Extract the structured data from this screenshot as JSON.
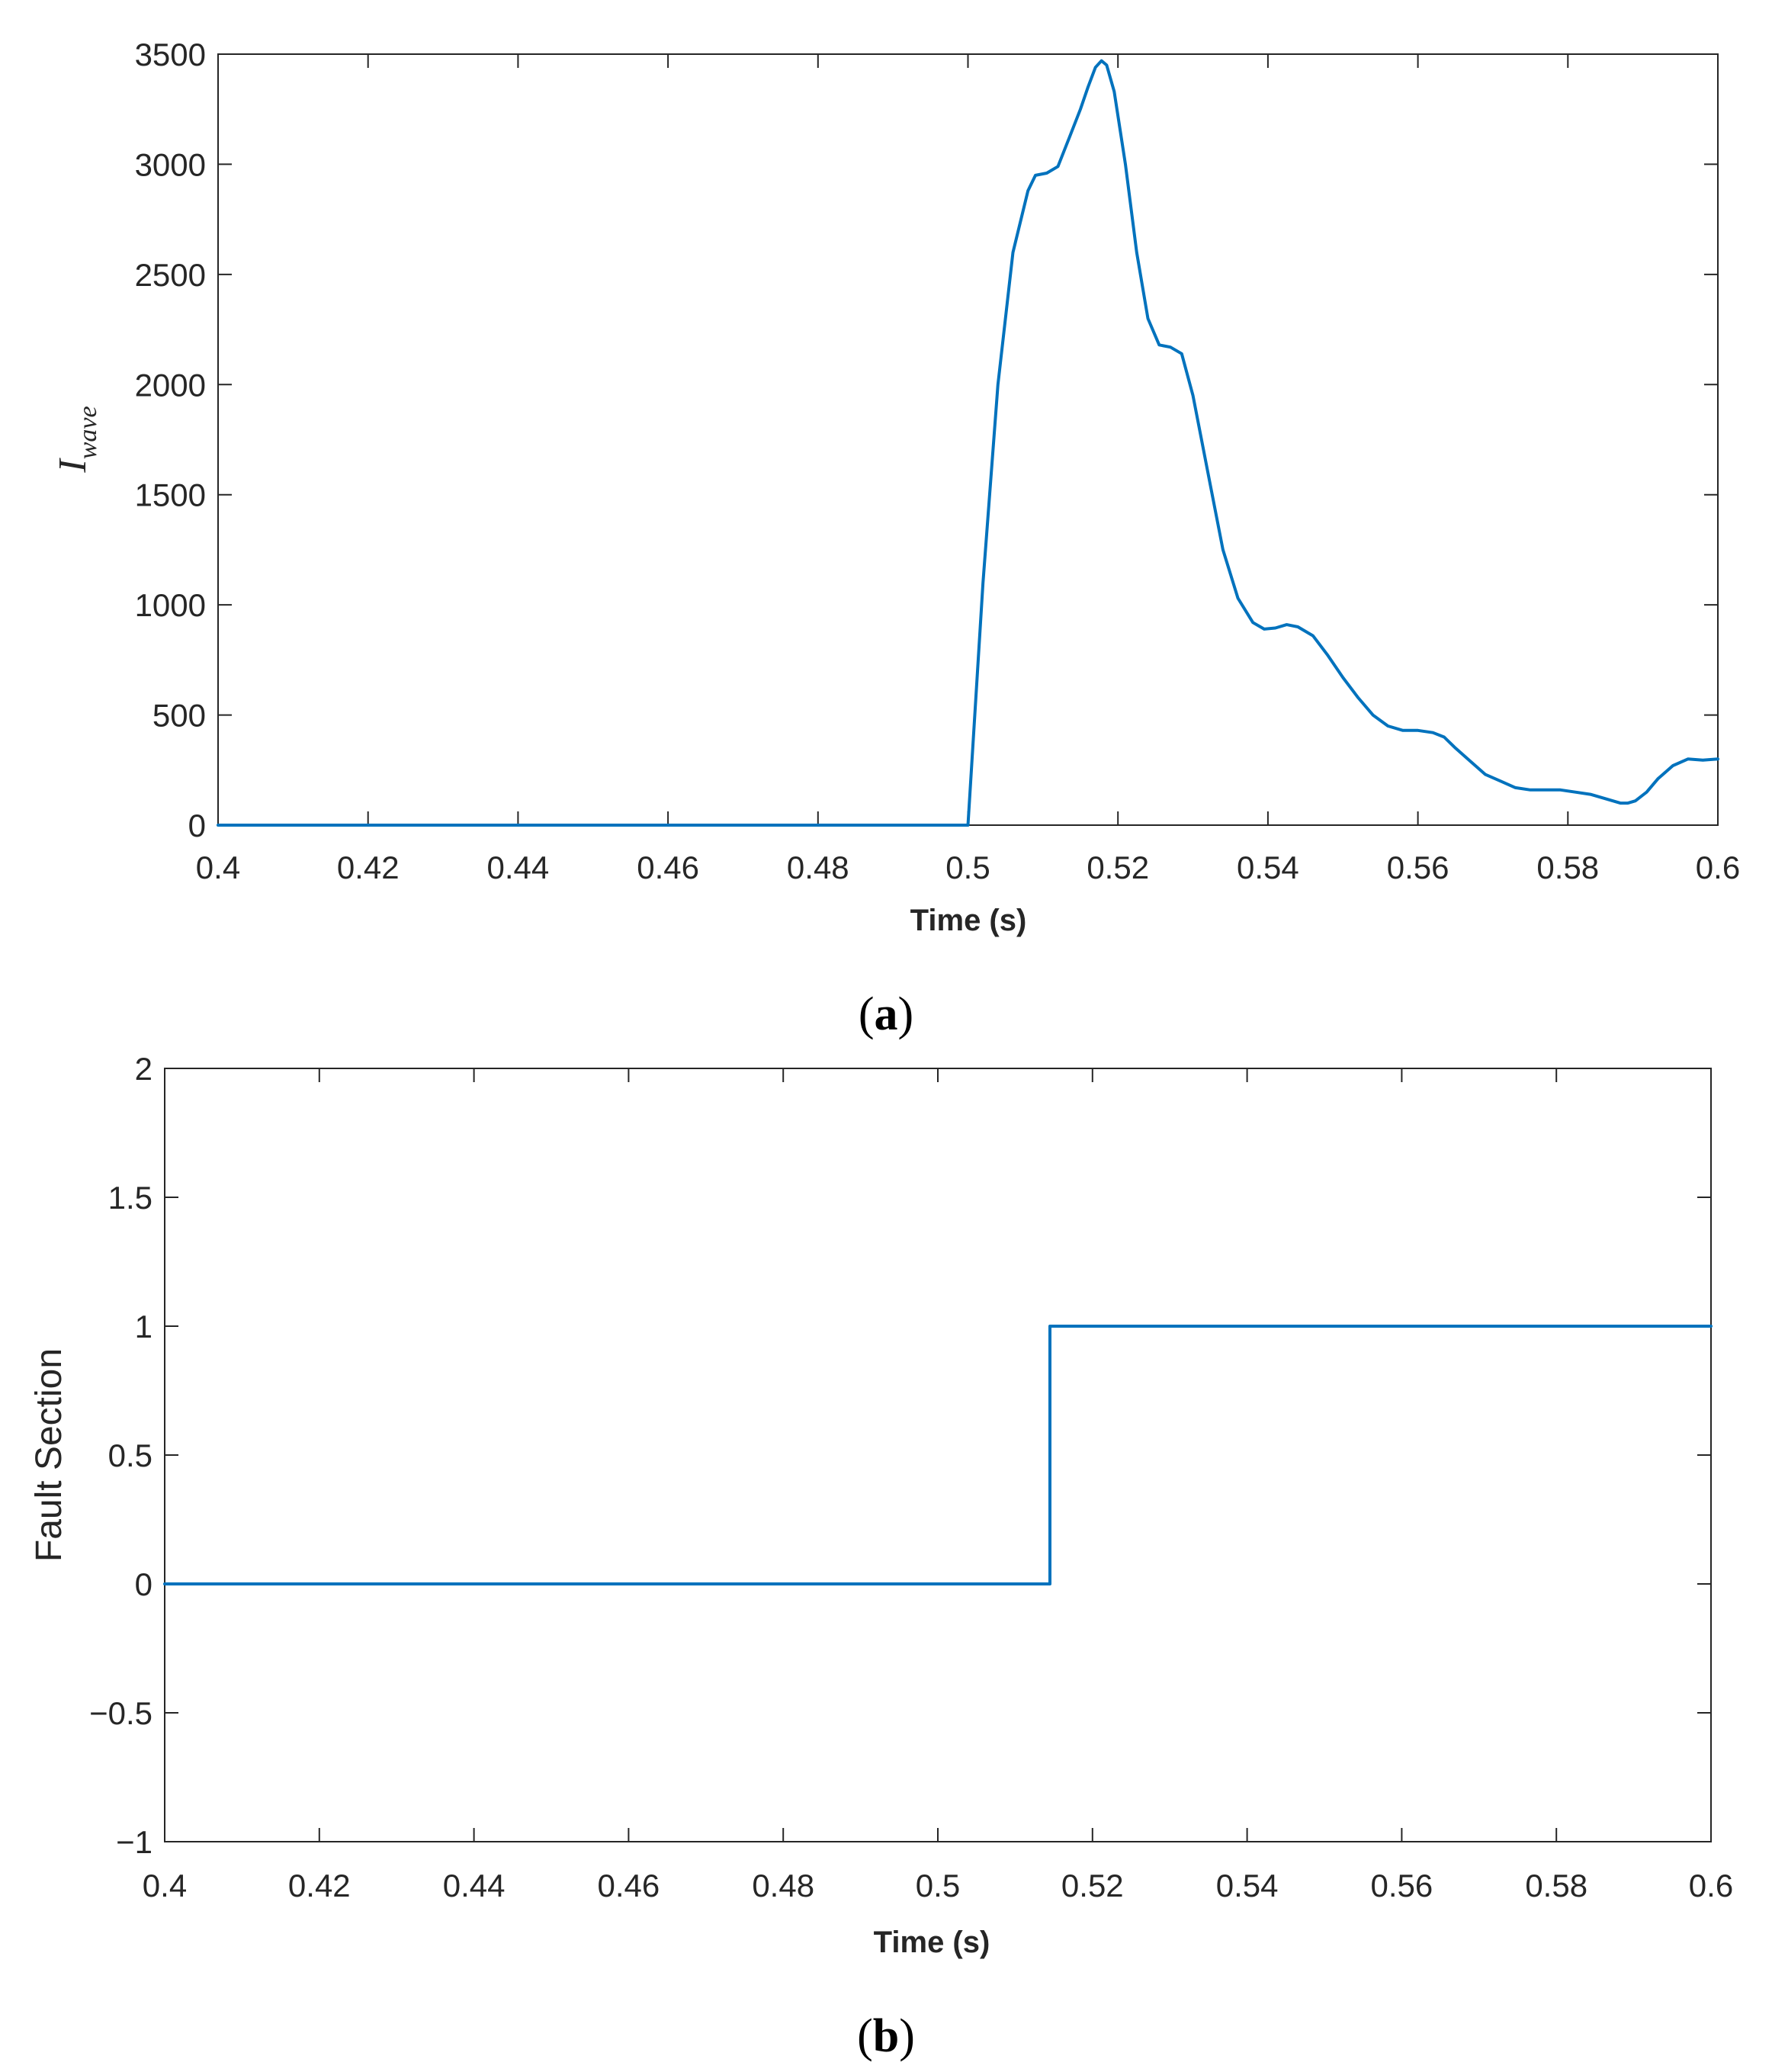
{
  "colors": {
    "series": "#0072BD",
    "axis": "#262626"
  },
  "chart_data": [
    {
      "panel": "a",
      "type": "line",
      "xlabel": "Time (s)",
      "ylabel_main": "I",
      "ylabel_sub": "wave",
      "xlim": [
        0.4,
        0.6
      ],
      "ylim": [
        0,
        3500
      ],
      "xticks": [
        "0.4",
        "0.42",
        "0.44",
        "0.46",
        "0.48",
        "0.5",
        "0.52",
        "0.54",
        "0.56",
        "0.58",
        "0.6"
      ],
      "yticks": [
        "0",
        "500",
        "1000",
        "1500",
        "2000",
        "2500",
        "3000",
        "3500"
      ],
      "grid": false,
      "series": [
        {
          "x": [
            0.4,
            0.49975,
            0.5,
            0.502,
            0.504,
            0.506,
            0.508,
            0.509,
            0.5105,
            0.512,
            0.5135,
            0.515,
            0.516,
            0.517,
            0.5178,
            0.5185,
            0.5195,
            0.521,
            0.5225,
            0.524,
            0.5255,
            0.527,
            0.5285,
            0.53,
            0.532,
            0.534,
            0.536,
            0.538,
            0.5395,
            0.541,
            0.5425,
            0.544,
            0.546,
            0.548,
            0.55,
            0.552,
            0.554,
            0.556,
            0.558,
            0.56,
            0.562,
            0.5635,
            0.565,
            0.567,
            0.569,
            0.571,
            0.573,
            0.575,
            0.577,
            0.579,
            0.581,
            0.583,
            0.585,
            0.587,
            0.588,
            0.589,
            0.5905,
            0.592,
            0.594,
            0.596,
            0.598,
            0.6
          ],
          "y": [
            0,
            0,
            0,
            1100,
            2000,
            2600,
            2880,
            2950,
            2960,
            2990,
            3120,
            3250,
            3350,
            3440,
            3470,
            3450,
            3330,
            3000,
            2600,
            2300,
            2180,
            2170,
            2140,
            1950,
            1600,
            1250,
            1030,
            920,
            890,
            895,
            910,
            900,
            860,
            770,
            670,
            580,
            500,
            450,
            430,
            430,
            420,
            400,
            350,
            290,
            230,
            200,
            170,
            160,
            160,
            160,
            150,
            140,
            120,
            100,
            100,
            110,
            150,
            210,
            270,
            300,
            295,
            300
          ]
        }
      ]
    },
    {
      "panel": "b",
      "type": "line",
      "xlabel": "Time (s)",
      "ylabel": "Fault Section",
      "xlim": [
        0.4,
        0.6
      ],
      "ylim": [
        -1,
        2
      ],
      "xticks": [
        "0.4",
        "0.42",
        "0.44",
        "0.46",
        "0.48",
        "0.5",
        "0.52",
        "0.54",
        "0.56",
        "0.58",
        "0.6"
      ],
      "yticks": [
        "−1",
        "−0.5",
        "0",
        "0.5",
        "1",
        "1.5",
        "2"
      ],
      "grid": false,
      "series": [
        {
          "x": [
            0.4,
            0.5145,
            0.5145,
            0.6
          ],
          "y": [
            0,
            0,
            1,
            1
          ]
        }
      ]
    }
  ],
  "panel_labels": {
    "a": "a",
    "b": "b",
    "open": "(",
    "close": ")"
  }
}
